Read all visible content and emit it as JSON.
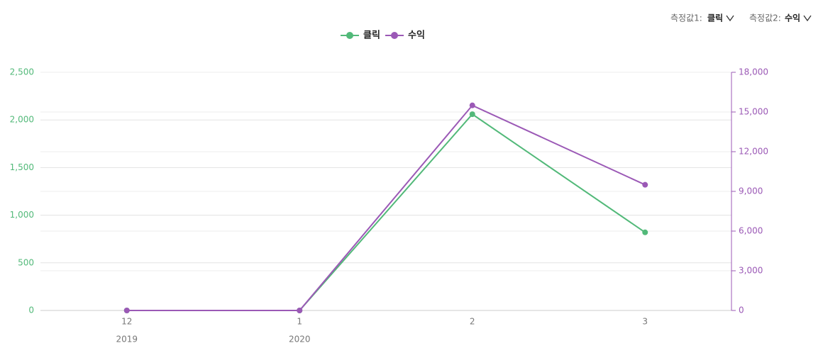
{
  "controls": {
    "measure1_label": "측정값1:",
    "measure1_value": "클릭",
    "measure2_label": "측정값2:",
    "measure2_value": "수익"
  },
  "chart_data": {
    "type": "line",
    "categories": [
      "12",
      "1",
      "2",
      "3"
    ],
    "year_labels": [
      "2019",
      "2020",
      null,
      null
    ],
    "series": [
      {
        "name": "클릭",
        "color": "#52b979",
        "values": [
          0,
          0,
          2060,
          820
        ]
      },
      {
        "name": "수익",
        "color": "#9b59b6",
        "axis": "y2",
        "values": [
          0,
          0,
          15500,
          9500
        ]
      }
    ],
    "ylim": [
      0,
      2500
    ],
    "yticks": [
      0,
      500,
      {
        "value": 1000,
        "label": "1,000"
      },
      {
        "value": 1500,
        "label": "1,500"
      },
      {
        "value": 2000,
        "label": "2,000"
      },
      {
        "value": 2500,
        "label": "2,500"
      }
    ],
    "y2lim": [
      0,
      18000
    ],
    "y2ticks": [
      0,
      {
        "value": 3000,
        "label": "3,000"
      },
      {
        "value": 6000,
        "label": "6,000"
      },
      {
        "value": 9000,
        "label": "9,000"
      },
      {
        "value": 12000,
        "label": "12,000"
      },
      {
        "value": 15000,
        "label": "15,000"
      },
      {
        "value": 18000,
        "label": "18,000"
      }
    ],
    "grid": true
  }
}
